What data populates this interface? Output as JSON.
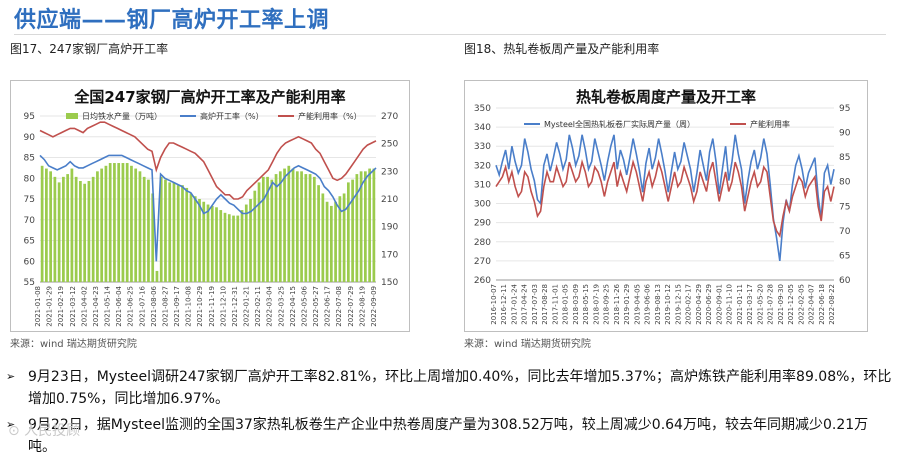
{
  "page": {
    "title": "供应端——钢厂高炉开工率上调",
    "watermark": "⊙ 人民投顾"
  },
  "figures": [
    {
      "label": "图17、247家钢厂高炉开工率",
      "source": "来源：wind    瑞达期货研究院"
    },
    {
      "label": "图18、热轧卷板周产量及产能利用率",
      "source": "来源：wind    瑞达期货研究院"
    }
  ],
  "bullets": [
    "9月23日，Mysteel调研247家钢厂高炉开工率82.81%，环比上周增加0.40%，同比去年增加5.37%；高炉炼铁产能利用率89.08%，环比增加0.75%，同比增加6.97%。",
    "9月22日，据Mysteel监测的全国37家热轧板卷生产企业中热卷周度产量为308.52万吨，较上周减少0.64万吨，较去年同期减少0.21万吨。"
  ],
  "colors": {
    "title": "#2f6fbf",
    "bar": "#9bcb4d",
    "blue_line": "#4a7ec9",
    "red_line": "#c0504d"
  },
  "chart_data": [
    {
      "type": "bar+line",
      "title": "全国247家钢厂高炉开工率及产能利用率",
      "legend": [
        "日均铁水产量（万吨）",
        "高炉开工率（%）",
        "产能利用率（%）"
      ],
      "legend_position": "top",
      "left_axis": {
        "range": [
          55,
          95
        ],
        "ticks": [
          "55",
          "60",
          "65",
          "70",
          "75",
          "80",
          "85",
          "90",
          "95"
        ]
      },
      "right_axis": {
        "range": [
          150,
          270
        ],
        "ticks": [
          "150",
          "170",
          "190",
          "210",
          "230",
          "250",
          "270"
        ]
      },
      "x_ticks": [
        "2021-01-08",
        "2021-01-29",
        "2021-02-19",
        "2021-03-12",
        "2021-04-02",
        "2021-04-23",
        "2021-05-14",
        "2021-06-04",
        "2021-06-25",
        "2021-07-16",
        "2021-08-06",
        "2021-08-27",
        "2021-09-17",
        "2021-10-08",
        "2021-10-29",
        "2021-11-19",
        "2021-12-10",
        "2021-12-31",
        "2022-01-21",
        "2022-02-11",
        "2022-03-04",
        "2022-03-25",
        "2022-04-15",
        "2022-05-06",
        "2022-05-27",
        "2022-06-17",
        "2022-07-08",
        "2022-07-29",
        "2022-08-19",
        "2022-09-09"
      ],
      "series": [
        {
          "name": "日均铁水产量（万吨）",
          "axis": "right",
          "values": [
            234,
            232,
            230,
            226,
            222,
            226,
            228,
            232,
            226,
            223,
            221,
            223,
            226,
            230,
            232,
            234,
            236,
            236,
            236,
            236,
            236,
            234,
            232,
            230,
            226,
            224,
            214,
            158,
            226,
            224,
            222,
            222,
            220,
            220,
            218,
            214,
            212,
            210,
            208,
            206,
            205,
            204,
            202,
            200,
            199,
            198,
            198,
            202,
            206,
            210,
            216,
            222,
            226,
            226,
            224,
            228,
            230,
            232,
            234,
            232,
            230,
            230,
            228,
            228,
            226,
            220,
            214,
            208,
            205,
            208,
            212,
            214,
            222,
            224,
            228,
            230,
            230,
            232,
            232
          ]
        },
        {
          "name": "高炉开工率（%）",
          "axis": "left",
          "values": [
            85.5,
            84.5,
            83,
            82.5,
            82,
            82.5,
            83,
            84,
            83,
            82.5,
            82.5,
            83,
            83.5,
            84,
            84.5,
            85,
            85.5,
            85.5,
            85.5,
            85.5,
            85,
            84.5,
            84,
            83.5,
            83,
            82.5,
            82,
            60,
            81,
            80,
            79.5,
            79,
            78.5,
            78,
            77,
            76.5,
            75,
            73.5,
            71.5,
            72,
            73.5,
            75,
            76,
            75,
            74,
            73.5,
            72.5,
            71.5,
            71.5,
            72,
            73,
            74,
            75,
            77,
            79,
            78,
            79,
            80.5,
            81.5,
            82.5,
            83,
            82.5,
            82,
            81.5,
            81,
            80,
            78,
            77,
            75.5,
            73.5,
            72,
            72.5,
            74,
            75.5,
            77,
            79,
            80.5,
            81.5,
            82.5
          ]
        },
        {
          "name": "产能利用率（%）",
          "axis": "left",
          "values": [
            91.5,
            91,
            90.5,
            90,
            90.5,
            91,
            91.5,
            92,
            92,
            91.5,
            91,
            92,
            92.5,
            93,
            93.5,
            93.5,
            93,
            92.5,
            92,
            91.5,
            91,
            90.5,
            90,
            89,
            88,
            87,
            86.5,
            82,
            85,
            87,
            88.5,
            88.5,
            88,
            87.5,
            87,
            86.5,
            86,
            85,
            84,
            82,
            80,
            78,
            77,
            76,
            76,
            75,
            75,
            75.5,
            77,
            78,
            79,
            80,
            81,
            82,
            84,
            86,
            87.5,
            88.5,
            89,
            89.5,
            90,
            89.5,
            89,
            88.5,
            87,
            86,
            84,
            82,
            80,
            79.5,
            80,
            81,
            82.5,
            84,
            85.5,
            87,
            88,
            88.5,
            89
          ]
        }
      ]
    },
    {
      "type": "line",
      "title": "热轧卷板周度产量及开工率",
      "legend": [
        "Mysteel全国热轧板卷厂实际周产量（周）",
        "产能利用率"
      ],
      "legend_position": "top",
      "left_axis": {
        "range": [
          260,
          350
        ],
        "ticks": [
          "260",
          "270",
          "280",
          "290",
          "300",
          "310",
          "320",
          "330",
          "340",
          "350"
        ]
      },
      "right_axis": {
        "range": [
          60,
          95
        ],
        "ticks": [
          "60",
          "65",
          "70",
          "75",
          "80",
          "85",
          "90",
          "95"
        ]
      },
      "x_ticks": [
        "2016-10-07",
        "2016-12-11",
        "2017-01-24",
        "2017-04-24",
        "2017-07-03",
        "2017-08-28",
        "2017-11-01",
        "2018-01-05",
        "2018-03-09",
        "2018-05-15",
        "2018-07-19",
        "2018-09-25",
        "2018-11-26",
        "2019-01-29",
        "2019-04-05",
        "2019-06-06",
        "2019-08-13",
        "2019-10-12",
        "2019-12-15",
        "2020-02-17",
        "2020-04-29",
        "2020-06-29",
        "2020-09-01",
        "2020-11-10",
        "2021-01-11",
        "2021-03-17",
        "2021-05-20",
        "2021-07-28",
        "2021-09-30",
        "2021-12-05",
        "2022-02-05",
        "2022-04-07",
        "2022-06-18",
        "2022-08-22"
      ],
      "series": [
        {
          "name": "Mysteel全国热轧板卷厂实际周产量（周）",
          "axis": "left",
          "values": [
            320,
            315,
            322,
            328,
            318,
            330,
            322,
            316,
            320,
            334,
            327,
            318,
            312,
            302,
            300,
            320,
            326,
            317,
            324,
            332,
            326,
            318,
            323,
            336,
            329,
            320,
            325,
            336,
            328,
            318,
            322,
            334,
            327,
            320,
            312,
            322,
            330,
            336,
            318,
            328,
            323,
            315,
            324,
            334,
            326,
            317,
            306,
            321,
            329,
            318,
            324,
            334,
            326,
            317,
            306,
            317,
            327,
            318,
            322,
            332,
            325,
            318,
            306,
            316,
            328,
            320,
            312,
            327,
            334,
            322,
            305,
            318,
            330,
            312,
            322,
            336,
            326,
            318,
            300,
            312,
            322,
            328,
            318,
            324,
            334,
            326,
            310,
            292,
            282,
            270,
            290,
            302,
            296,
            310,
            320,
            325,
            318,
            308,
            316,
            320,
            324,
            304,
            292,
            316,
            320,
            310,
            318
          ]
        },
        {
          "name": "产能利用率",
          "axis": "right",
          "values": [
            79,
            80,
            81,
            83,
            80,
            82,
            79,
            77,
            78,
            82,
            81,
            78,
            76,
            73,
            74,
            79,
            82,
            80,
            80,
            83,
            81,
            79,
            80,
            84,
            82,
            80,
            81,
            84,
            82,
            79,
            80,
            83,
            82,
            80,
            77,
            80,
            82,
            84,
            79,
            82,
            80,
            78,
            81,
            84,
            82,
            79,
            76,
            80,
            82,
            79,
            81,
            84,
            82,
            79,
            76,
            79,
            82,
            79,
            80,
            83,
            81,
            79,
            76,
            78,
            82,
            80,
            78,
            82,
            84,
            80,
            76,
            79,
            82,
            78,
            80,
            84,
            82,
            79,
            74,
            77,
            80,
            82,
            79,
            80,
            83,
            82,
            77,
            72,
            70,
            69,
            73,
            76,
            74,
            77,
            79,
            81,
            80,
            77,
            79,
            80,
            81,
            75,
            72,
            78,
            79,
            76,
            79
          ]
        }
      ]
    }
  ]
}
